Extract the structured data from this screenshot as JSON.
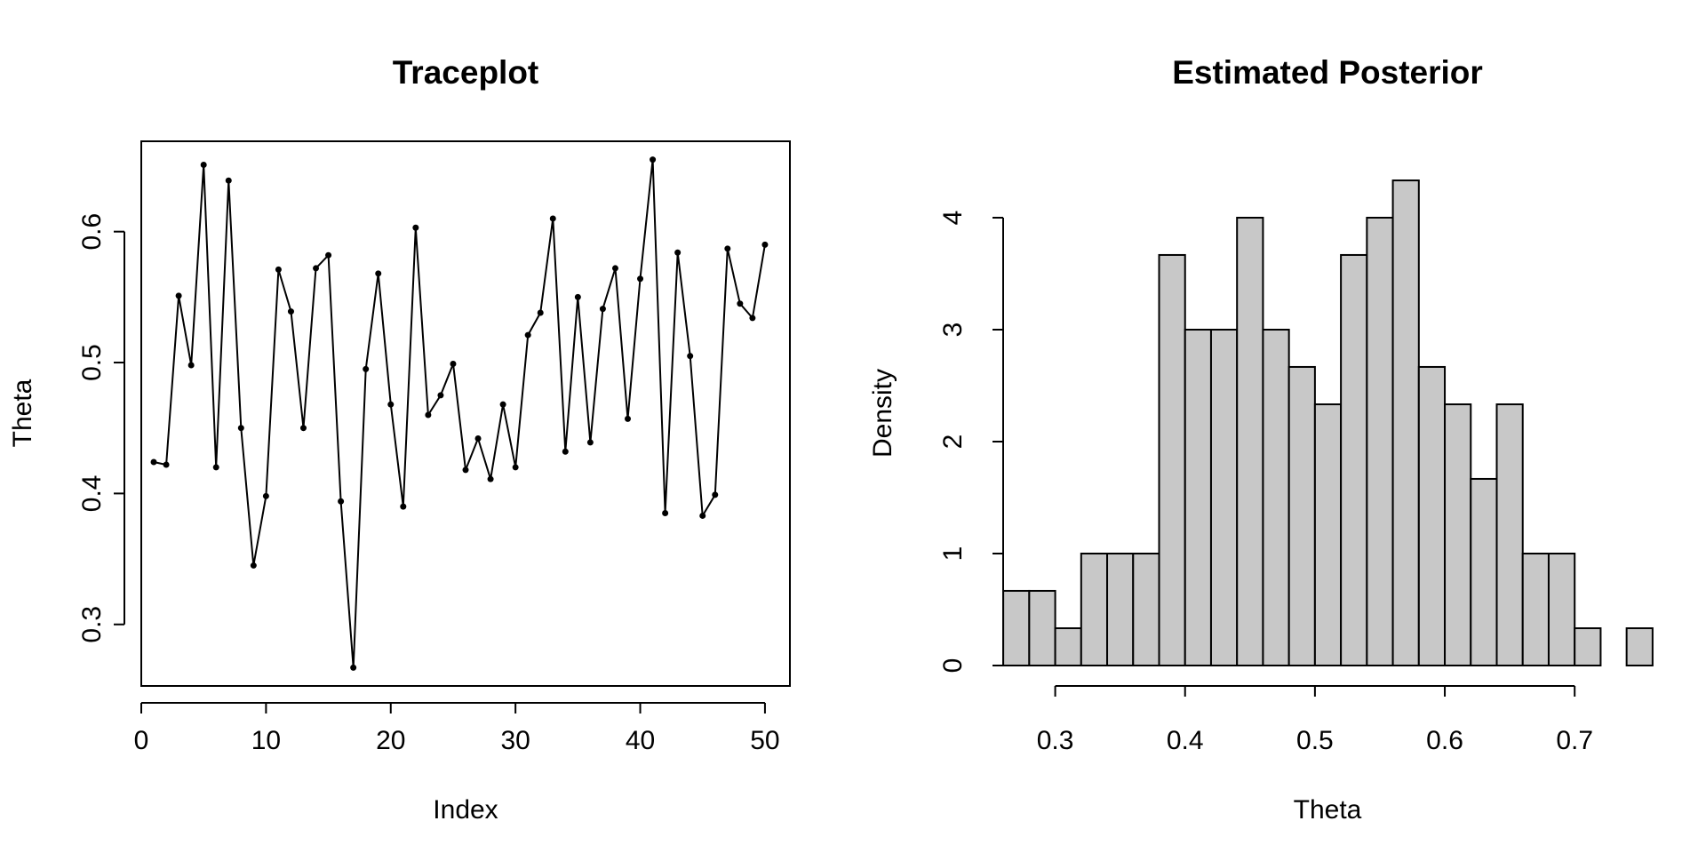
{
  "chart_data": [
    {
      "type": "line",
      "title": "Traceplot",
      "xlabel": "Index",
      "ylabel": "Theta",
      "xlim": [
        0,
        52
      ],
      "ylim": [
        0.253,
        0.669
      ],
      "xticks": [
        0,
        10,
        20,
        30,
        40,
        50
      ],
      "xtick_labels": [
        "0",
        "10",
        "20",
        "30",
        "40",
        "50"
      ],
      "yticks": [
        0.3,
        0.4,
        0.5,
        0.6
      ],
      "ytick_labels": [
        "0.3",
        "0.4",
        "0.5",
        "0.6"
      ],
      "box": true,
      "grid": false,
      "series": [
        {
          "x": [
            1,
            2,
            3,
            4,
            5,
            6,
            7,
            8,
            9,
            10,
            11,
            12,
            13,
            14,
            15,
            16,
            17,
            18,
            19,
            20,
            21,
            22,
            23,
            24,
            25,
            26,
            27,
            28,
            29,
            30,
            31,
            32,
            33,
            34,
            35,
            36,
            37,
            38,
            39,
            40,
            41,
            42,
            43,
            44,
            45,
            46,
            47,
            48,
            49,
            50
          ],
          "values": [
            0.424,
            0.422,
            0.551,
            0.498,
            0.651,
            0.42,
            0.639,
            0.45,
            0.345,
            0.398,
            0.571,
            0.539,
            0.45,
            0.572,
            0.582,
            0.394,
            0.267,
            0.495,
            0.568,
            0.468,
            0.39,
            0.603,
            0.46,
            0.475,
            0.499,
            0.418,
            0.442,
            0.411,
            0.468,
            0.42,
            0.521,
            0.538,
            0.61,
            0.432,
            0.55,
            0.439,
            0.541,
            0.572,
            0.457,
            0.564,
            0.655,
            0.385,
            0.584,
            0.505,
            0.383,
            0.399,
            0.587,
            0.545,
            0.534,
            0.59
          ],
          "color": "#000000",
          "marker": "point"
        }
      ]
    },
    {
      "type": "bar",
      "subtype": "histogram",
      "title": "Estimated Posterior",
      "xlabel": "Theta",
      "ylabel": "Density",
      "xlim": [
        0.25,
        0.77
      ],
      "ylim": [
        0,
        4.5
      ],
      "xticks": [
        0.3,
        0.4,
        0.5,
        0.6,
        0.7
      ],
      "xtick_labels": [
        "0.3",
        "0.4",
        "0.5",
        "0.6",
        "0.7"
      ],
      "yticks": [
        0,
        1,
        2,
        3,
        4
      ],
      "ytick_labels": [
        "0",
        "1",
        "2",
        "3",
        "4"
      ],
      "box": false,
      "grid": false,
      "bin_width": 0.02,
      "bin_starts": [
        0.26,
        0.28,
        0.3,
        0.32,
        0.34,
        0.36,
        0.38,
        0.4,
        0.42,
        0.44,
        0.46,
        0.48,
        0.5,
        0.52,
        0.54,
        0.56,
        0.58,
        0.6,
        0.62,
        0.64,
        0.66,
        0.68,
        0.7,
        0.72,
        0.74
      ],
      "values": [
        0.667,
        0.667,
        0.333,
        1,
        1,
        1,
        3.667,
        3,
        3,
        4,
        3,
        2.667,
        2.333,
        3.667,
        4,
        4.333,
        2.667,
        2.333,
        1.667,
        2.333,
        1,
        1,
        0.333,
        0,
        0.333
      ],
      "bar_color": "#c8c8c8",
      "edge_color": "#000000"
    }
  ]
}
